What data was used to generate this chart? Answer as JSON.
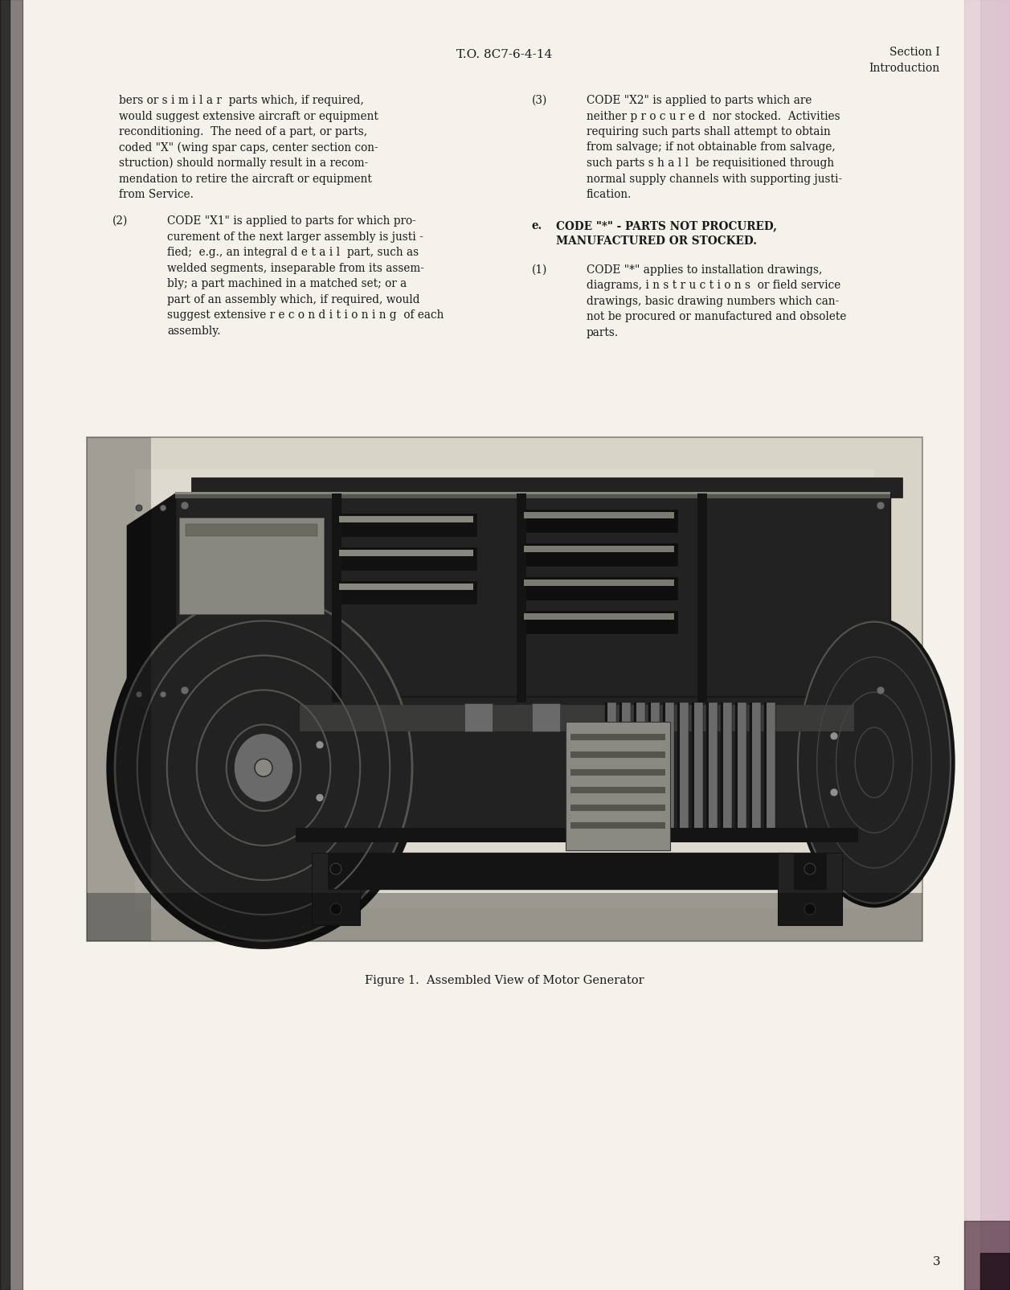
{
  "page_bg": "#f5f2eb",
  "header_center": "T.O. 8C7-6-4-14",
  "header_right_line1": "Section I",
  "header_right_line2": "Introduction",
  "page_number": "3",
  "figure_caption": "Figure 1.  Assembled View of Motor Generator",
  "left_col_lines": [
    "bers or s i m i l a r  parts which, if required,",
    "would suggest extensive aircraft or equipment",
    "reconditioning.  The need of a part, or parts,",
    "coded \"X\" (wing spar caps, center section con-",
    "struction) should normally result in a recom-",
    "mendation to retire the aircraft or equipment",
    "from Service."
  ],
  "left_col2_label": "(2)",
  "left_col2_lines": [
    "CODE \"X1\" is applied to parts for which pro-",
    "curement of the next larger assembly is justi -",
    "fied;  e.g., an integral d e t a i l  part, such as",
    "welded segments, inseparable from its assem-",
    "bly; a part machined in a matched set; or a",
    "part of an assembly which, if required, would",
    "suggest extensive r e c o n d i t i o n i n g  of each",
    "assembly."
  ],
  "right_col3_label": "(3)",
  "right_col3_lines": [
    "CODE \"X2\" is applied to parts which are",
    "neither p r o c u r e d  nor stocked.  Activities",
    "requiring such parts shall attempt to obtain",
    "from salvage; if not obtainable from salvage,",
    "such parts s h a l l  be requisitioned through",
    "normal supply channels with supporting justi-",
    "fication."
  ],
  "right_cole_label": "e.",
  "right_cole_lines": [
    "CODE \"*\" - PARTS NOT PROCURED,",
    "MANUFACTURED OR STOCKED."
  ],
  "right_col1_label": "(1)",
  "right_col1_lines": [
    "CODE \"*\" applies to installation drawings,",
    "diagrams, i n s t r u c t i o n s  or field service",
    "drawings, basic drawing numbers which can-",
    "not be procured or manufactured and obsolete",
    "parts."
  ]
}
